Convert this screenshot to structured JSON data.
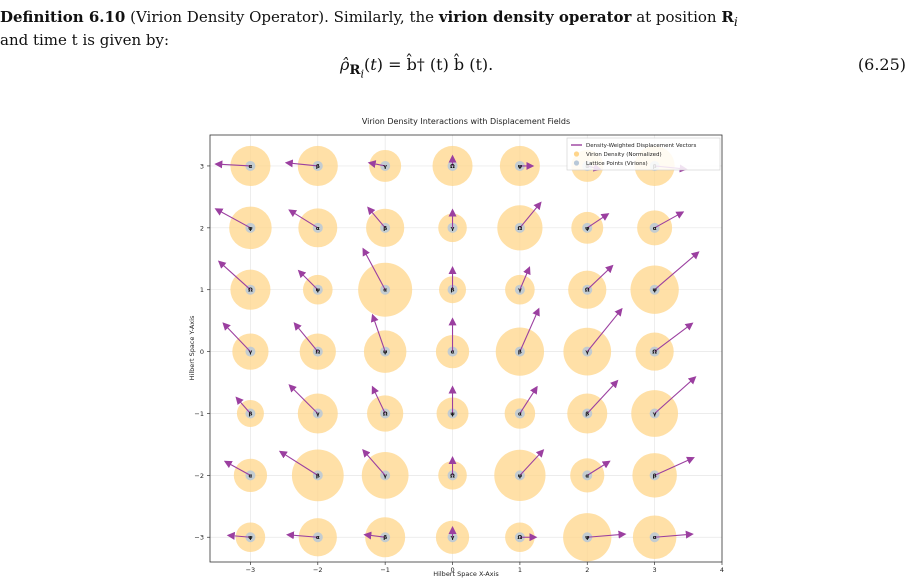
{
  "definition": {
    "head": "Definition 6.10",
    "name": "(Virion Density Operator).",
    "text_before": "Similarly, the",
    "term": "virion density operator",
    "text_after": "at position",
    "position_symbol": "R",
    "position_sub": "i",
    "line2": "and time t is given by:"
  },
  "equation": {
    "lhs": "ρ̂",
    "rhs": "b̂† (t) b̂ (t).",
    "number": "(6.25)"
  },
  "chart_data": {
    "type": "scatter",
    "title": "Virion Density Interactions with Displacement Fields",
    "xlabel": "Hilbert Space X-Axis",
    "ylabel": "Hilbert Space Y-Axis",
    "xlim": [
      -3.6,
      4.0
    ],
    "ylim": [
      -3.4,
      3.5
    ],
    "xticks": [
      "−3",
      "−2",
      "−1",
      "0",
      "1",
      "2",
      "3",
      "4"
    ],
    "yticks": [
      "−3",
      "−2",
      "−1",
      "0",
      "1",
      "2",
      "3"
    ],
    "grid": true,
    "legend_position": "top-right",
    "legend": [
      {
        "label": "Density-Weighted Displacement Vectors",
        "kind": "line",
        "color": "#9b3fa0"
      },
      {
        "label": "Virion Density (Normalized)",
        "kind": "circle",
        "color": "#ffd58a"
      },
      {
        "label": "Lattice Points (Virions)",
        "kind": "dot",
        "color": "#b8c8d8"
      }
    ],
    "colors": {
      "arrow": "#9b3fa0",
      "density": "#ffd58a",
      "lattice": "#b8c8d8"
    },
    "points": [
      {
        "x": -3,
        "y": 3,
        "label": "α",
        "density": 0.55,
        "u": -0.55,
        "v": 0.03
      },
      {
        "x": -2,
        "y": 3,
        "label": "β",
        "density": 0.55,
        "u": -0.5,
        "v": 0.05
      },
      {
        "x": -1,
        "y": 3,
        "label": "γ",
        "density": 0.35,
        "u": -0.25,
        "v": 0.05
      },
      {
        "x": 0,
        "y": 3,
        "label": "Ω",
        "density": 0.55,
        "u": 0.0,
        "v": 0.15
      },
      {
        "x": 1,
        "y": 3,
        "label": "ψ",
        "density": 0.55,
        "u": 0.2,
        "v": 0.0
      },
      {
        "x": 2,
        "y": 3,
        "label": "α",
        "density": 0.35,
        "u": 0.2,
        "v": -0.05
      },
      {
        "x": 3,
        "y": 3,
        "label": "β",
        "density": 0.55,
        "u": 0.5,
        "v": -0.05
      },
      {
        "x": -3,
        "y": 2,
        "label": "ψ",
        "density": 0.62,
        "u": -0.55,
        "v": 0.3
      },
      {
        "x": -2,
        "y": 2,
        "label": "α",
        "density": 0.52,
        "u": -0.45,
        "v": 0.28
      },
      {
        "x": -1,
        "y": 2,
        "label": "β",
        "density": 0.5,
        "u": -0.27,
        "v": 0.32
      },
      {
        "x": 0,
        "y": 2,
        "label": "γ",
        "density": 0.28,
        "u": 0.0,
        "v": 0.28
      },
      {
        "x": 1,
        "y": 2,
        "label": "Ω",
        "density": 0.7,
        "u": 0.33,
        "v": 0.4
      },
      {
        "x": 2,
        "y": 2,
        "label": "ψ",
        "density": 0.35,
        "u": 0.33,
        "v": 0.22
      },
      {
        "x": 3,
        "y": 2,
        "label": "α",
        "density": 0.42,
        "u": 0.45,
        "v": 0.25
      },
      {
        "x": -3,
        "y": 1,
        "label": "Ω",
        "density": 0.55,
        "u": -0.5,
        "v": 0.45
      },
      {
        "x": -2,
        "y": 1,
        "label": "ψ",
        "density": 0.3,
        "u": -0.3,
        "v": 0.3
      },
      {
        "x": -1,
        "y": 1,
        "label": "α",
        "density": 1.0,
        "u": -0.35,
        "v": 0.65
      },
      {
        "x": 0,
        "y": 1,
        "label": "β",
        "density": 0.25,
        "u": 0.0,
        "v": 0.35
      },
      {
        "x": 1,
        "y": 1,
        "label": "γ",
        "density": 0.3,
        "u": 0.15,
        "v": 0.35
      },
      {
        "x": 2,
        "y": 1,
        "label": "Ω",
        "density": 0.5,
        "u": 0.4,
        "v": 0.38
      },
      {
        "x": 3,
        "y": 1,
        "label": "ψ",
        "density": 0.8,
        "u": 0.7,
        "v": 0.6
      },
      {
        "x": -3,
        "y": 0,
        "label": "γ",
        "density": 0.45,
        "u": -0.43,
        "v": 0.45
      },
      {
        "x": -2,
        "y": 0,
        "label": "Ω",
        "density": 0.45,
        "u": -0.37,
        "v": 0.45
      },
      {
        "x": -1,
        "y": 0,
        "label": "ψ",
        "density": 0.62,
        "u": -0.2,
        "v": 0.58
      },
      {
        "x": 0,
        "y": 0,
        "label": "α",
        "density": 0.38,
        "u": 0.0,
        "v": 0.52
      },
      {
        "x": 1,
        "y": 0,
        "label": "β",
        "density": 0.8,
        "u": 0.3,
        "v": 0.68
      },
      {
        "x": 2,
        "y": 0,
        "label": "γ",
        "density": 0.78,
        "u": 0.55,
        "v": 0.68
      },
      {
        "x": 3,
        "y": 0,
        "label": "Ω",
        "density": 0.5,
        "u": 0.6,
        "v": 0.45
      },
      {
        "x": -3,
        "y": -1,
        "label": "β",
        "density": 0.25,
        "u": -0.22,
        "v": 0.25
      },
      {
        "x": -2,
        "y": -1,
        "label": "γ",
        "density": 0.55,
        "u": -0.45,
        "v": 0.45
      },
      {
        "x": -1,
        "y": -1,
        "label": "Ω",
        "density": 0.45,
        "u": -0.2,
        "v": 0.42
      },
      {
        "x": 0,
        "y": -1,
        "label": "ψ",
        "density": 0.35,
        "u": 0.0,
        "v": 0.42
      },
      {
        "x": 1,
        "y": -1,
        "label": "α",
        "density": 0.32,
        "u": 0.27,
        "v": 0.42
      },
      {
        "x": 2,
        "y": -1,
        "label": "β",
        "density": 0.55,
        "u": 0.48,
        "v": 0.52
      },
      {
        "x": 3,
        "y": -1,
        "label": "γ",
        "density": 0.75,
        "u": 0.65,
        "v": 0.58
      },
      {
        "x": -3,
        "y": -2,
        "label": "α",
        "density": 0.38,
        "u": -0.4,
        "v": 0.22
      },
      {
        "x": -2,
        "y": -2,
        "label": "β",
        "density": 0.92,
        "u": -0.6,
        "v": 0.38
      },
      {
        "x": -1,
        "y": -2,
        "label": "γ",
        "density": 0.75,
        "u": -0.35,
        "v": 0.4
      },
      {
        "x": 0,
        "y": -2,
        "label": "Ω",
        "density": 0.28,
        "u": 0.0,
        "v": 0.28
      },
      {
        "x": 1,
        "y": -2,
        "label": "ψ",
        "density": 0.9,
        "u": 0.37,
        "v": 0.4
      },
      {
        "x": 2,
        "y": -2,
        "label": "α",
        "density": 0.4,
        "u": 0.35,
        "v": 0.22
      },
      {
        "x": 3,
        "y": -2,
        "label": "β",
        "density": 0.68,
        "u": 0.62,
        "v": 0.28
      },
      {
        "x": -3,
        "y": -3,
        "label": "ψ",
        "density": 0.3,
        "u": -0.35,
        "v": 0.03
      },
      {
        "x": -2,
        "y": -3,
        "label": "α",
        "density": 0.5,
        "u": -0.48,
        "v": 0.04
      },
      {
        "x": -1,
        "y": -3,
        "label": "β",
        "density": 0.55,
        "u": -0.32,
        "v": 0.04
      },
      {
        "x": 0,
        "y": -3,
        "label": "γ",
        "density": 0.38,
        "u": 0.0,
        "v": 0.15
      },
      {
        "x": 1,
        "y": -3,
        "label": "Ω",
        "density": 0.3,
        "u": 0.25,
        "v": 0.0
      },
      {
        "x": 2,
        "y": -3,
        "label": "ψ",
        "density": 0.8,
        "u": 0.6,
        "v": 0.05
      },
      {
        "x": 3,
        "y": -3,
        "label": "α",
        "density": 0.65,
        "u": 0.6,
        "v": 0.05
      }
    ]
  }
}
